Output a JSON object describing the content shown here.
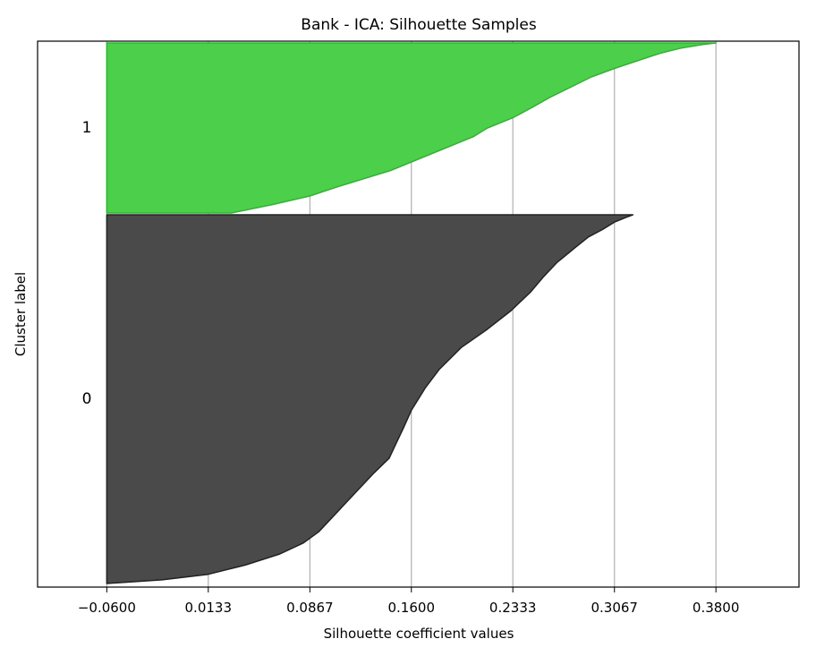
{
  "chart_data": {
    "type": "area",
    "title": "Bank - ICA: Silhouette Samples",
    "xlabel": "Silhouette coefficient values",
    "ylabel": "Cluster label",
    "xlim": [
      -0.11,
      0.44
    ],
    "xticks": [
      -0.06,
      0.0133,
      0.0867,
      0.16,
      0.2333,
      0.3067,
      0.38
    ],
    "xtick_labels": [
      "−0.0600",
      "0.0133",
      "0.0867",
      "0.1600",
      "0.2333",
      "0.3067",
      "0.3800"
    ],
    "grid": "x-axis vertical lines",
    "clusters": [
      {
        "label": "0",
        "color": "#4a4a4a",
        "edge_color": "#222222",
        "profile": [
          [
            0.0,
            -0.06
          ],
          [
            0.01,
            -0.02
          ],
          [
            0.025,
            0.0133
          ],
          [
            0.05,
            0.04
          ],
          [
            0.08,
            0.065
          ],
          [
            0.11,
            0.082
          ],
          [
            0.14,
            0.093
          ],
          [
            0.18,
            0.103
          ],
          [
            0.22,
            0.113
          ],
          [
            0.26,
            0.123
          ],
          [
            0.3,
            0.133
          ],
          [
            0.34,
            0.144
          ],
          [
            0.38,
            0.149
          ],
          [
            0.42,
            0.154
          ],
          [
            0.47,
            0.16
          ],
          [
            0.53,
            0.17
          ],
          [
            0.58,
            0.18
          ],
          [
            0.64,
            0.196
          ],
          [
            0.69,
            0.215
          ],
          [
            0.74,
            0.232
          ],
          [
            0.79,
            0.246
          ],
          [
            0.83,
            0.255
          ],
          [
            0.87,
            0.265
          ],
          [
            0.91,
            0.278
          ],
          [
            0.94,
            0.288
          ],
          [
            0.96,
            0.298
          ],
          [
            0.98,
            0.3067
          ],
          [
            0.993,
            0.315
          ],
          [
            1.0,
            0.32
          ]
        ]
      },
      {
        "label": "1",
        "color": "#4cd04c",
        "edge_color": "#2fb52f",
        "profile": [
          [
            0.0,
            0.03
          ],
          [
            0.05,
            0.06
          ],
          [
            0.1,
            0.0867
          ],
          [
            0.15,
            0.105
          ],
          [
            0.2,
            0.125
          ],
          [
            0.25,
            0.145
          ],
          [
            0.3,
            0.16
          ],
          [
            0.35,
            0.175
          ],
          [
            0.4,
            0.19
          ],
          [
            0.45,
            0.205
          ],
          [
            0.5,
            0.215
          ],
          [
            0.56,
            0.2333
          ],
          [
            0.62,
            0.247
          ],
          [
            0.68,
            0.26
          ],
          [
            0.74,
            0.275
          ],
          [
            0.8,
            0.29
          ],
          [
            0.85,
            0.3067
          ],
          [
            0.9,
            0.325
          ],
          [
            0.94,
            0.34
          ],
          [
            0.97,
            0.355
          ],
          [
            0.99,
            0.37
          ],
          [
            1.0,
            0.38
          ]
        ]
      }
    ]
  }
}
